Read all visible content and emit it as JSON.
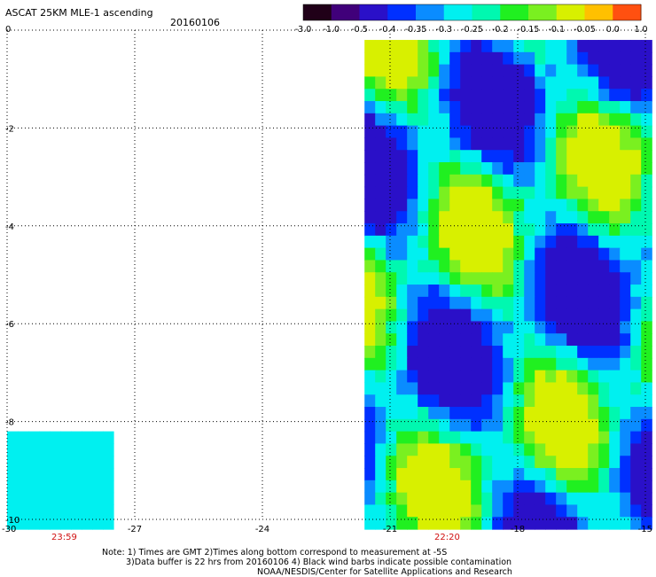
{
  "header": {
    "title": "ASCAT 25KM MLE-1 ascending",
    "date": "20160106"
  },
  "colorbar": {
    "labels": [
      "-3.0",
      "-1.0",
      "-0.5",
      "-0.4",
      "-0.35",
      "-0.3",
      "-0.25",
      "-0.2",
      "-0.15",
      "-0.1",
      "-0.05",
      "0.0",
      "1.0"
    ],
    "colors": [
      "#200018",
      "#40007a",
      "#2a10c8",
      "#0030ff",
      "#0a8cff",
      "#00f0f0",
      "#00f8b0",
      "#20f020",
      "#7af020",
      "#d8f000",
      "#ffc000",
      "#ff5010"
    ]
  },
  "chart_data": {
    "type": "heatmap",
    "title": "ASCAT 25KM MLE-1 ascending",
    "subtitle": "20160106",
    "xlim": [
      -30,
      -15
    ],
    "ylim": [
      -10,
      0
    ],
    "x_ticks": [
      "-30",
      "-27",
      "-24",
      "-21",
      "-18",
      "-15"
    ],
    "y_ticks": [
      "0",
      "-2",
      "-4",
      "-6",
      "-8",
      "-10"
    ],
    "grid": true,
    "swaths": [
      {
        "lon_range": [
          -21.6,
          -15.0
        ],
        "lat_range": [
          -10.0,
          -0.2
        ],
        "values_range": [
          -0.5,
          -0.05
        ]
      },
      {
        "lon_range": [
          -30.0,
          -27.6
        ],
        "lat_range": [
          -10.0,
          -8.2
        ],
        "values_range": [
          -0.3,
          -0.3
        ]
      }
    ],
    "times": [
      "23:59",
      "22:20"
    ]
  },
  "footer": {
    "note_line1": "Note: 1) Times are GMT 2)Times along bottom correspond to measurement at -5S",
    "note_line2": "3)Data buffer is 22 hrs from 20160106 4) Black wind barbs indicate possible contamination",
    "credit": "NOAA/NESDIS/Center for Satellite Applications and Research"
  }
}
